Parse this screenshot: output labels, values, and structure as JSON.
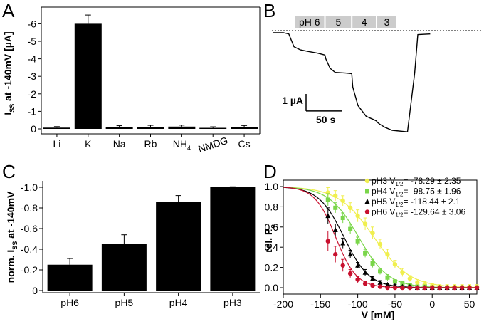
{
  "panels": {
    "A": "A",
    "B": "B",
    "C": "C",
    "D": "D"
  },
  "chart_data": [
    {
      "panel": "A",
      "type": "bar",
      "categories": [
        "Li",
        "K",
        "Na",
        "Rb",
        "NH4",
        "NMDG",
        "Cs"
      ],
      "values": [
        -0.07,
        -6.0,
        -0.1,
        -0.12,
        -0.13,
        -0.06,
        -0.11
      ],
      "errors": [
        0.06,
        0.5,
        0.08,
        0.08,
        0.08,
        0.06,
        0.08
      ],
      "ylabel": "ISS at -140mV [µA]",
      "ylabel_main": "I",
      "ylabel_sub": "SS",
      "ylabel_rest": " at -140mV [µA]",
      "ylim": [
        0,
        -6.6
      ],
      "yticks": [
        "0",
        "-1",
        "-2",
        "-3",
        "-4",
        "-5",
        "-6"
      ],
      "yticks_values": [
        0,
        -1,
        -2,
        -3,
        -4,
        -5,
        -6
      ]
    },
    {
      "panel": "B",
      "type": "line",
      "pH_labels": [
        "pH 6",
        "5",
        "4",
        "3"
      ],
      "x_seconds": [
        0,
        10,
        15,
        20,
        26,
        33,
        43,
        50,
        51,
        55,
        60,
        70,
        76,
        77,
        82,
        90,
        97,
        100,
        101,
        103,
        108,
        115,
        130,
        137,
        140,
        152
      ],
      "current_uA": [
        0,
        0,
        -0.04,
        -0.45,
        -0.55,
        -0.6,
        -0.66,
        -0.72,
        -0.85,
        -1.15,
        -1.28,
        -1.3,
        -1.32,
        -1.75,
        -2.35,
        -2.7,
        -2.8,
        -2.85,
        -2.9,
        -2.95,
        -3.05,
        -3.15,
        -3.2,
        -1.3,
        -0.06,
        -0.04
      ],
      "scale_current_label": "1 µA",
      "scale_time_label": "50 s"
    },
    {
      "panel": "C",
      "type": "bar",
      "categories": [
        "pH6",
        "pH5",
        "pH4",
        "pH3"
      ],
      "values": [
        -0.25,
        -0.45,
        -0.86,
        -1.0
      ],
      "errors": [
        0.06,
        0.09,
        0.06,
        0.005
      ],
      "ylabel": "norm. ISS at -140mV",
      "ylabel_main": "norm. I",
      "ylabel_sub": "SS",
      "ylabel_rest": " at -140mV",
      "ylim": [
        0,
        -1.07
      ],
      "yticks": [
        "0",
        "-0.2",
        "-0.4",
        "-0.6",
        "-0.8",
        "-1.0"
      ],
      "yticks_values": [
        0,
        -0.2,
        -0.4,
        -0.6,
        -0.8,
        -1.0
      ]
    },
    {
      "panel": "D",
      "type": "scatter",
      "xlabel": "V [mM]",
      "ylabel_main": "rel. P",
      "ylabel_sub": "o",
      "xlim": [
        -200,
        60
      ],
      "ylim": [
        -0.06,
        1.05
      ],
      "xticks": [
        "-200",
        "-150",
        "-100",
        "-50",
        "0",
        "50"
      ],
      "xticks_values": [
        -200,
        -150,
        -100,
        -50,
        0,
        50
      ],
      "yticks": [
        "0.0",
        "0.2",
        "0.4",
        "0.6",
        "0.8",
        "1.0"
      ],
      "yticks_values": [
        0,
        0.2,
        0.4,
        0.6,
        0.8,
        1.0
      ],
      "x": [
        -140,
        -130,
        -120,
        -110,
        -100,
        -90,
        -80,
        -70,
        -60,
        -50,
        -40,
        -30,
        -20,
        -10,
        0,
        10,
        20,
        30,
        40,
        50,
        60
      ],
      "series": [
        {
          "name_main": "pH3 V",
          "name_sub": "1/2",
          "name_rest": "= -78.29  ± 2.35",
          "color": "#f0ef4e",
          "marker": "circle",
          "values": [
            0.94,
            0.91,
            0.86,
            0.79,
            0.71,
            0.63,
            0.54,
            0.43,
            0.33,
            0.23,
            0.15,
            0.09,
            0.05,
            0.03,
            0.02,
            0.01,
            0.01,
            0.01,
            0.01,
            0.01,
            0.01
          ],
          "errors": [
            0.05,
            0.05,
            0.05,
            0.05,
            0.06,
            0.06,
            0.06,
            0.05,
            0.05,
            0.04,
            0.04,
            0.03,
            0.03,
            0.03,
            0.02,
            0.02,
            0.02,
            0.02,
            0.02,
            0.02,
            0.02
          ]
        },
        {
          "name_main": "pH4 V",
          "name_sub": "1/2",
          "name_rest": "= -98.75  ± 1.96",
          "color": "#7ad64a",
          "marker": "square",
          "values": [
            0.87,
            0.79,
            0.69,
            0.58,
            0.46,
            0.34,
            0.24,
            0.16,
            0.1,
            0.06,
            0.04,
            0.02,
            0.01,
            0.01,
            0.0,
            0.0,
            0.0,
            0.0,
            0.0,
            0.0,
            0.0
          ],
          "errors": [
            0.06,
            0.05,
            0.05,
            0.05,
            0.04,
            0.04,
            0.04,
            0.03,
            0.03,
            0.02,
            0.02,
            0.02,
            0.01,
            0.01,
            0.01,
            0.01,
            0.01,
            0.01,
            0.01,
            0.01,
            0.01
          ]
        },
        {
          "name_main": "pH5 V",
          "name_sub": "1/2",
          "name_rest": "= -118.44  ± 2.1",
          "color": "#000000",
          "marker": "triangle",
          "values": [
            0.71,
            0.57,
            0.44,
            0.33,
            0.22,
            0.15,
            0.09,
            0.05,
            0.03,
            0.02,
            0.01,
            0.01,
            0.0,
            0.0,
            0.0,
            0.0,
            0.0,
            0.0,
            0.0,
            0.0,
            0.0
          ],
          "errors": [
            0.08,
            0.06,
            0.05,
            0.04,
            0.03,
            0.03,
            0.02,
            0.02,
            0.01,
            0.01,
            0.01,
            0.01,
            0.01,
            0.01,
            0.01,
            0.01,
            0.01,
            0.01,
            0.01,
            0.01,
            0.01
          ]
        },
        {
          "name_main": "pH6 V",
          "name_sub": "1/2",
          "name_rest": "= -129.64  ± 3.06",
          "color": "#c8102e",
          "marker": "circle",
          "values": [
            0.46,
            0.33,
            0.22,
            0.14,
            0.08,
            0.04,
            0.02,
            0.01,
            0.0,
            0.0,
            0.0,
            0.0,
            0.0,
            0.0,
            0.0,
            0.0,
            0.0,
            0.0,
            0.0,
            0.0,
            0.0
          ],
          "errors": [
            0.1,
            0.08,
            0.06,
            0.04,
            0.03,
            0.02,
            0.02,
            0.01,
            0.01,
            0.01,
            0.01,
            0.01,
            0.01,
            0.01,
            0.01,
            0.01,
            0.01,
            0.01,
            0.01,
            0.01,
            0.01
          ]
        }
      ]
    }
  ]
}
